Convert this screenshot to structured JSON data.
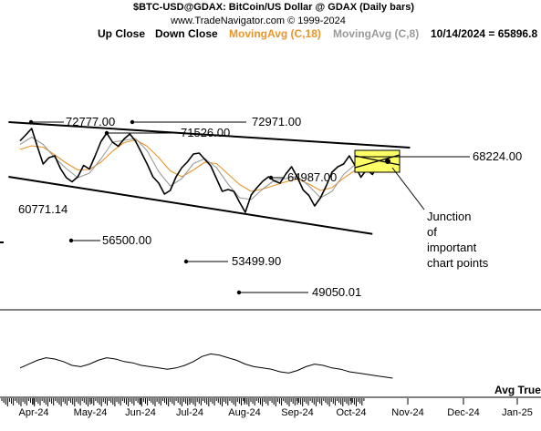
{
  "header": {
    "title": "$BTC-USD@GDAX:  BitCoin/US Dollar @ GDAX  (Daily bars)",
    "copyright": "www.TradeNavigator.com © 1999-2024",
    "legend": [
      {
        "label": "Up Close",
        "color": "#000000"
      },
      {
        "label": "Down Close",
        "color": "#000000"
      },
      {
        "label": "MovingAvg (C,18)",
        "color": "#e8952a"
      },
      {
        "label": "MovingAvg (C,8)",
        "color": "#9a9a9a"
      }
    ],
    "last": "10/14/2024 = 65896.8"
  },
  "lower_panel_label": "Avg True",
  "chart_data": {
    "type": "line",
    "x_tick_labels": [
      "Apr-24",
      "May-24",
      "Jun-24",
      "Jul-24",
      "Aug-24",
      "Sep-24",
      "Oct-24",
      "Nov-24",
      "Dec-24",
      "Jan-25"
    ],
    "price_labels": [
      {
        "label": "72777.00",
        "date": "2024-04-08",
        "value": 72777
      },
      {
        "label": "71526.00",
        "date": "2024-05-21",
        "value": 71526
      },
      {
        "label": "72971.00",
        "date": "2024-06-07",
        "value": 72971
      },
      {
        "label": "68224.00",
        "date": "2024-10-14",
        "value": 68224
      },
      {
        "label": "64987.00",
        "date": "2024-09-27",
        "value": 64987
      },
      {
        "label": "60771.14",
        "date": "2024-04-13",
        "value": 60771
      },
      {
        "label": "56500.00",
        "date": "2024-05-01",
        "value": 56500
      },
      {
        "label": "53499.90",
        "date": "2024-08-05",
        "value": 53500
      },
      {
        "label": "49050.01",
        "date": "2024-08-05",
        "value": 49050
      }
    ],
    "annotation": "Junction\nof\nimportant\nchart points",
    "series": [
      {
        "name": "Up Close",
        "color": "#000000",
        "values": [
          [
            0,
            69500
          ],
          [
            4,
            70800
          ],
          [
            8,
            72200
          ],
          [
            12,
            68200
          ],
          [
            16,
            64400
          ],
          [
            20,
            65800
          ],
          [
            24,
            66200
          ],
          [
            28,
            63400
          ],
          [
            32,
            61400
          ],
          [
            36,
            60500
          ],
          [
            40,
            61600
          ],
          [
            44,
            64100
          ],
          [
            48,
            63300
          ],
          [
            52,
            66200
          ],
          [
            56,
            69300
          ],
          [
            60,
            71200
          ],
          [
            64,
            69200
          ],
          [
            68,
            68300
          ],
          [
            72,
            69900
          ],
          [
            76,
            71000
          ],
          [
            80,
            69400
          ],
          [
            84,
            66900
          ],
          [
            88,
            64400
          ],
          [
            92,
            61600
          ],
          [
            96,
            60200
          ],
          [
            100,
            57800
          ],
          [
            104,
            58600
          ],
          [
            108,
            61600
          ],
          [
            112,
            63600
          ],
          [
            116,
            64900
          ],
          [
            120,
            66600
          ],
          [
            124,
            66800
          ],
          [
            128,
            65400
          ],
          [
            132,
            64000
          ],
          [
            136,
            61200
          ],
          [
            140,
            58400
          ],
          [
            144,
            58800
          ],
          [
            148,
            58400
          ],
          [
            152,
            56000
          ],
          [
            156,
            53800
          ],
          [
            160,
            57600
          ],
          [
            164,
            59200
          ],
          [
            168,
            60600
          ],
          [
            172,
            61600
          ],
          [
            176,
            60700
          ],
          [
            180,
            60200
          ],
          [
            184,
            62200
          ],
          [
            188,
            63800
          ],
          [
            192,
            61500
          ],
          [
            196,
            58700
          ],
          [
            200,
            57500
          ],
          [
            204,
            55200
          ],
          [
            208,
            57000
          ],
          [
            212,
            59600
          ],
          [
            216,
            62600
          ],
          [
            220,
            63800
          ],
          [
            224,
            64400
          ],
          [
            228,
            66200
          ],
          [
            232,
            64000
          ],
          [
            236,
            61500
          ],
          [
            240,
            63200
          ],
          [
            244,
            62100
          ],
          [
            248,
            64400
          ],
          [
            252,
            67300
          ]
        ]
      },
      {
        "name": "MovingAvg (C,18)",
        "color": "#e8952a",
        "values": [
          [
            0,
            67600
          ],
          [
            8,
            68400
          ],
          [
            16,
            68100
          ],
          [
            24,
            66400
          ],
          [
            32,
            64600
          ],
          [
            40,
            63100
          ],
          [
            48,
            63200
          ],
          [
            56,
            64800
          ],
          [
            64,
            67200
          ],
          [
            72,
            69100
          ],
          [
            80,
            69700
          ],
          [
            88,
            68300
          ],
          [
            96,
            65800
          ],
          [
            104,
            62900
          ],
          [
            112,
            61600
          ],
          [
            120,
            63100
          ],
          [
            128,
            64800
          ],
          [
            136,
            64500
          ],
          [
            144,
            62200
          ],
          [
            152,
            59900
          ],
          [
            160,
            58400
          ],
          [
            168,
            58900
          ],
          [
            176,
            59700
          ],
          [
            184,
            60500
          ],
          [
            192,
            61100
          ],
          [
            200,
            60000
          ],
          [
            208,
            58600
          ],
          [
            216,
            59200
          ],
          [
            224,
            61300
          ],
          [
            232,
            63000
          ],
          [
            240,
            63200
          ],
          [
            252,
            64600
          ]
        ]
      },
      {
        "name": "MovingAvg (C,8)",
        "color": "#9a9a9a",
        "values": [
          [
            0,
            68700
          ],
          [
            8,
            70300
          ],
          [
            16,
            68700
          ],
          [
            24,
            65800
          ],
          [
            32,
            63400
          ],
          [
            40,
            61400
          ],
          [
            48,
            62400
          ],
          [
            56,
            65500
          ],
          [
            64,
            69200
          ],
          [
            72,
            69600
          ],
          [
            80,
            70000
          ],
          [
            88,
            67300
          ],
          [
            96,
            62700
          ],
          [
            104,
            59600
          ],
          [
            112,
            61200
          ],
          [
            120,
            64500
          ],
          [
            128,
            65600
          ],
          [
            136,
            63600
          ],
          [
            144,
            60000
          ],
          [
            152,
            57000
          ],
          [
            160,
            56600
          ],
          [
            168,
            58900
          ],
          [
            176,
            60800
          ],
          [
            184,
            61200
          ],
          [
            192,
            61700
          ],
          [
            200,
            59600
          ],
          [
            208,
            57000
          ],
          [
            216,
            58400
          ],
          [
            224,
            62100
          ],
          [
            232,
            64300
          ],
          [
            240,
            63300
          ],
          [
            252,
            65300
          ]
        ]
      }
    ],
    "trendlines": [
      {
        "name": "upper-resistance",
        "from": [
          -8,
          73600
        ],
        "to": [
          270,
          68000
        ]
      },
      {
        "name": "lower-support",
        "from": [
          -8,
          61600
        ],
        "to": [
          244,
          49050
        ]
      }
    ],
    "avg_true_range": [
      1500,
      1650,
      1800,
      1900,
      1850,
      1750,
      1600,
      1550,
      1650,
      1800,
      1900,
      1850,
      1750,
      1700,
      1600,
      1550,
      1500,
      1450,
      1500,
      1600,
      1750,
      1950,
      2050,
      2000,
      1900,
      1800,
      1650,
      1550,
      1500,
      1450,
      1350,
      1300,
      1400,
      1550,
      1650,
      1600,
      1500,
      1450,
      1350,
      1300,
      1250,
      1200,
      1150,
      1100
    ]
  }
}
